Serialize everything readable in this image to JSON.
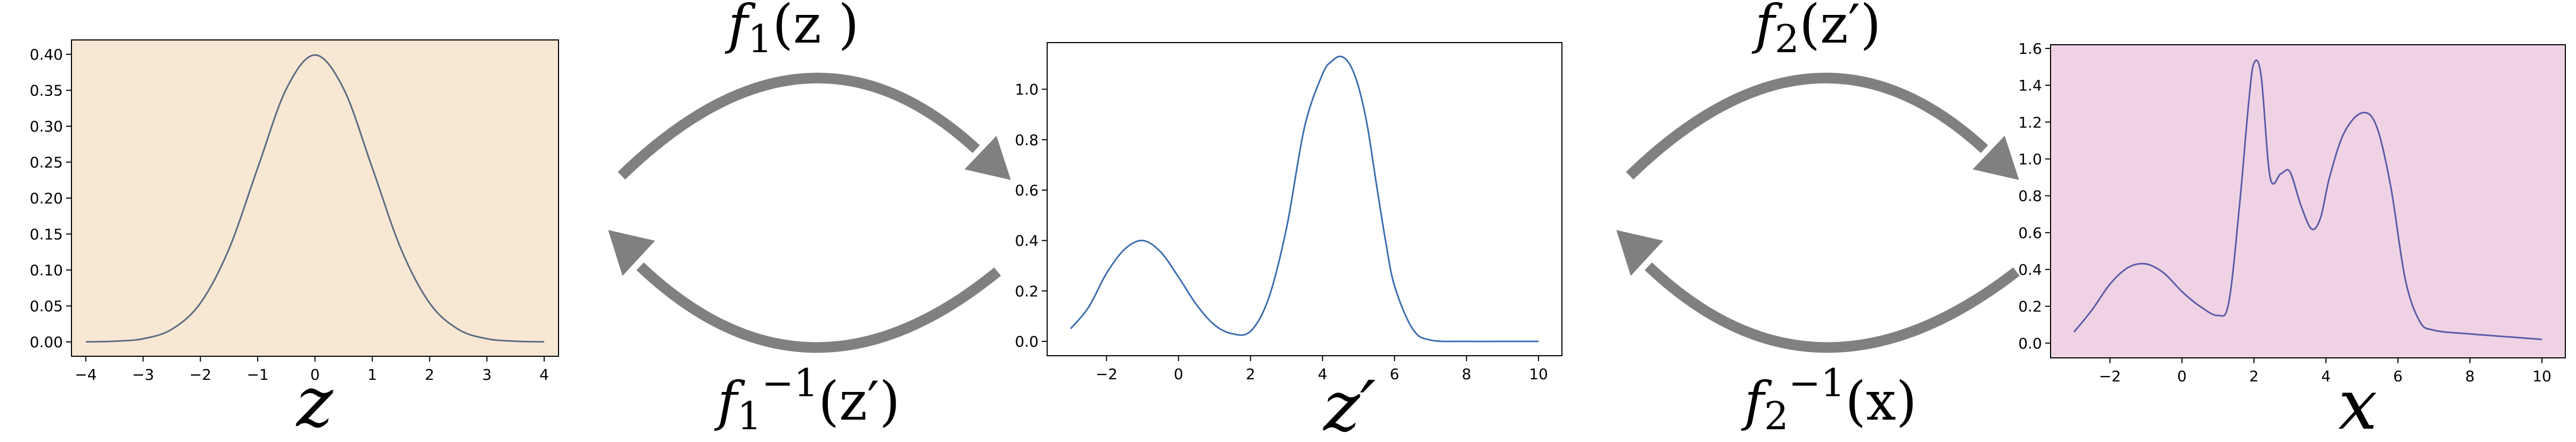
{
  "colors": {
    "panel1_bg": "#f7e7d3",
    "panel3_bg": "#efd3e4",
    "panel2_bg": "#ffffff",
    "curve1": "#5b6b83",
    "curve2": "#3b6db0",
    "curve3": "#5a5aa8",
    "arrow": "#808080"
  },
  "arrows": {
    "f1": {
      "base": "f",
      "sub": "1",
      "arg": "(z )"
    },
    "f1_inv": {
      "base": "f",
      "sub": "1",
      "sup": "−1",
      "arg": "(z′)"
    },
    "f2": {
      "base": "f",
      "sub": "2",
      "arg": "(z′)"
    },
    "f2_inv": {
      "base": "f",
      "sub": "2",
      "sup": "−1",
      "arg": "(x)"
    }
  },
  "chart_data": [
    {
      "type": "line",
      "xlabel": "z",
      "xlim": [
        -4.25,
        4.25
      ],
      "ylim": [
        -0.02,
        0.42
      ],
      "xticks": [
        -4,
        -3,
        -2,
        -1,
        0,
        1,
        2,
        3,
        4
      ],
      "xtick_labels": [
        "−4",
        "−3",
        "−2",
        "−1",
        "0",
        "1",
        "2",
        "3",
        "4"
      ],
      "yticks": [
        0.0,
        0.05,
        0.1,
        0.15,
        0.2,
        0.25,
        0.3,
        0.35,
        0.4
      ],
      "ytick_labels": [
        "0.00",
        "0.05",
        "0.10",
        "0.15",
        "0.20",
        "0.25",
        "0.30",
        "0.35",
        "0.40"
      ],
      "x": [
        -4,
        -3.5,
        -3,
        -2.5,
        -2,
        -1.5,
        -1,
        -0.5,
        0,
        0.5,
        1,
        1.5,
        2,
        2.5,
        3,
        3.5,
        4
      ],
      "y": [
        0.0001,
        0.0009,
        0.0044,
        0.0175,
        0.054,
        0.1295,
        0.242,
        0.352,
        0.399,
        0.352,
        0.242,
        0.1295,
        0.054,
        0.0175,
        0.0044,
        0.0009,
        0.0001
      ]
    },
    {
      "type": "line",
      "xlabel": "z′",
      "xlim": [
        -3.65,
        10.65
      ],
      "ylim": [
        -0.057,
        1.185
      ],
      "xticks": [
        -2,
        0,
        2,
        4,
        6,
        8,
        10
      ],
      "xtick_labels": [
        "−2",
        "0",
        "2",
        "4",
        "6",
        "8",
        "10"
      ],
      "yticks": [
        0.0,
        0.2,
        0.4,
        0.6,
        0.8,
        1.0
      ],
      "ytick_labels": [
        "0.0",
        "0.2",
        "0.4",
        "0.6",
        "0.8",
        "1.0"
      ],
      "x": [
        -3,
        -2.5,
        -2,
        -1.5,
        -1,
        -0.5,
        0,
        0.5,
        1,
        1.5,
        2,
        2.5,
        3,
        3.5,
        4,
        4.25,
        4.5,
        4.75,
        5,
        5.25,
        5.5,
        5.75,
        6,
        6.5,
        7,
        8,
        9,
        10
      ],
      "y": [
        0.05,
        0.135,
        0.27,
        0.365,
        0.4,
        0.355,
        0.255,
        0.145,
        0.065,
        0.03,
        0.04,
        0.17,
        0.45,
        0.85,
        1.06,
        1.11,
        1.13,
        1.1,
        1.01,
        0.85,
        0.62,
        0.4,
        0.22,
        0.05,
        0.005,
        0.0,
        0.0,
        0.0
      ]
    },
    {
      "type": "line",
      "xlabel": "x",
      "xlim": [
        -3.65,
        10.65
      ],
      "ylim": [
        -0.08,
        1.62
      ],
      "xticks": [
        -2,
        0,
        2,
        4,
        6,
        8,
        10
      ],
      "xtick_labels": [
        "−2",
        "0",
        "2",
        "4",
        "6",
        "8",
        "10"
      ],
      "yticks": [
        0.0,
        0.2,
        0.4,
        0.6,
        0.8,
        1.0,
        1.2,
        1.4,
        1.6
      ],
      "ytick_labels": [
        "0.0",
        "0.2",
        "0.4",
        "0.6",
        "0.8",
        "1.0",
        "1.2",
        "1.4",
        "1.6"
      ],
      "x": [
        -3,
        -2.5,
        -2,
        -1.5,
        -1,
        -0.5,
        0,
        0.5,
        1,
        1.3,
        1.6,
        1.85,
        2.0,
        2.2,
        2.45,
        2.75,
        3.0,
        3.3,
        3.6,
        3.85,
        4.1,
        4.5,
        5.0,
        5.4,
        5.8,
        6.2,
        6.6,
        7.0,
        8.0,
        9.0,
        10.0
      ],
      "y": [
        0.06,
        0.18,
        0.32,
        0.41,
        0.43,
        0.38,
        0.28,
        0.2,
        0.15,
        0.22,
        0.75,
        1.3,
        1.52,
        1.45,
        0.9,
        0.92,
        0.93,
        0.75,
        0.62,
        0.68,
        0.9,
        1.14,
        1.25,
        1.18,
        0.85,
        0.35,
        0.12,
        0.07,
        0.05,
        0.035,
        0.02
      ]
    }
  ]
}
